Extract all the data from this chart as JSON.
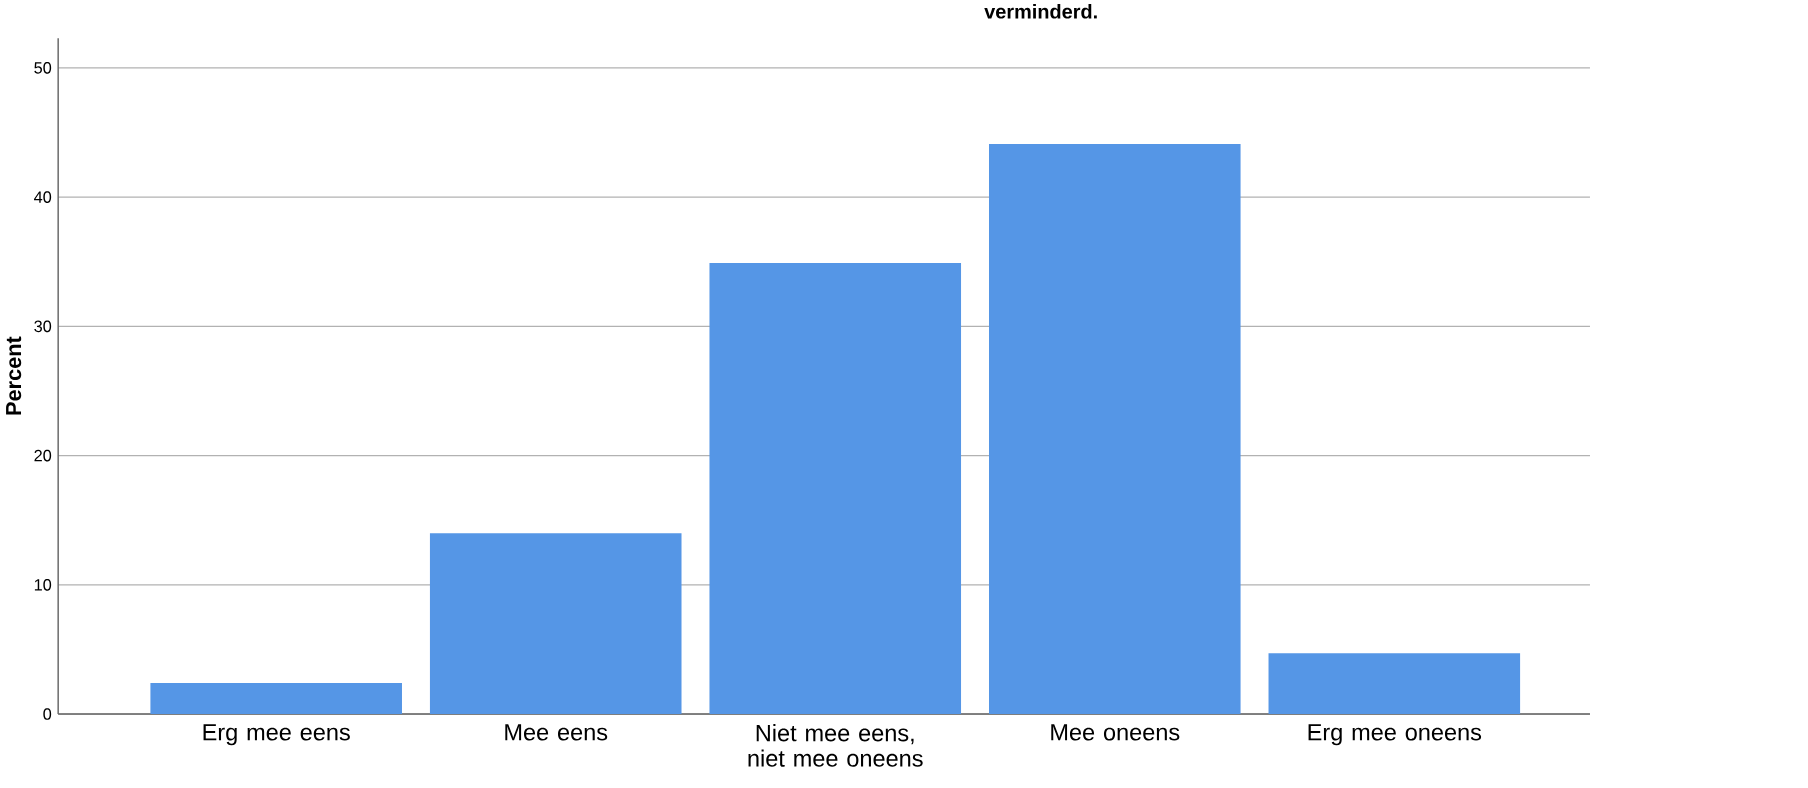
{
  "chart_data": {
    "type": "bar",
    "title": "verminderd.",
    "ylabel": "Percent",
    "categories": [
      "Erg mee eens",
      "Mee eens",
      "Niet mee eens, niet mee oneens",
      "Mee oneens",
      "Erg mee oneens"
    ],
    "values": [
      2.4,
      14.0,
      34.9,
      44.1,
      4.7
    ],
    "color": "#5596e6",
    "ylim": [
      0,
      52.3
    ],
    "yticks": [
      0,
      10,
      20,
      30,
      40,
      50
    ],
    "grid": "y"
  }
}
